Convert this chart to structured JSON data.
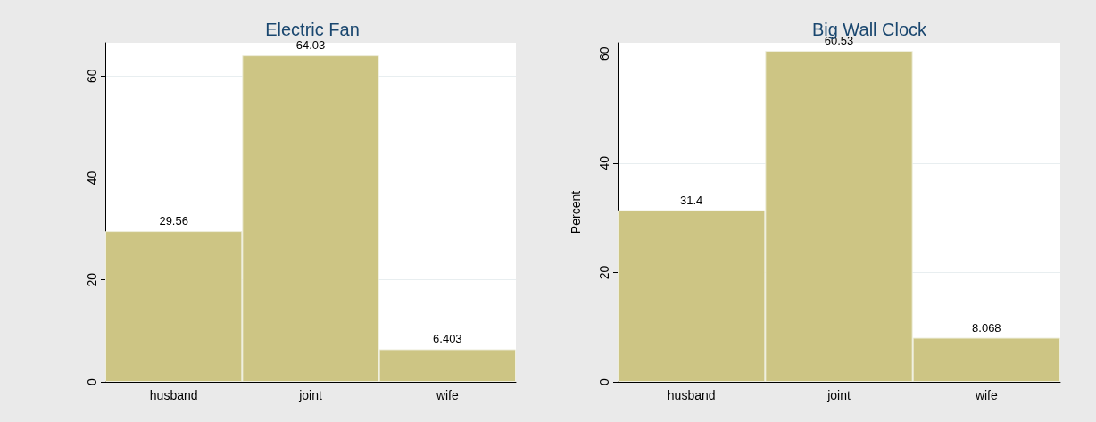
{
  "chart_data": [
    {
      "type": "bar",
      "title": "Electric Fan",
      "categories": [
        "husband",
        "joint",
        "wife"
      ],
      "values": [
        29.56,
        64.03,
        6.403
      ],
      "color": "#cdc584",
      "ylim": [
        0,
        66.5
      ],
      "yticks": [
        0,
        20,
        40,
        60
      ],
      "grid": "y",
      "data_labels": true
    },
    {
      "type": "bar",
      "title": "Big Wall Clock",
      "ylabel": "Percent",
      "categories": [
        "husband",
        "joint",
        "wife"
      ],
      "values": [
        31.4,
        60.53,
        8.068
      ],
      "color": "#cdc584",
      "ylim": [
        0,
        62
      ],
      "yticks": [
        0,
        20,
        40,
        60
      ],
      "grid": "y",
      "data_labels": true
    }
  ]
}
